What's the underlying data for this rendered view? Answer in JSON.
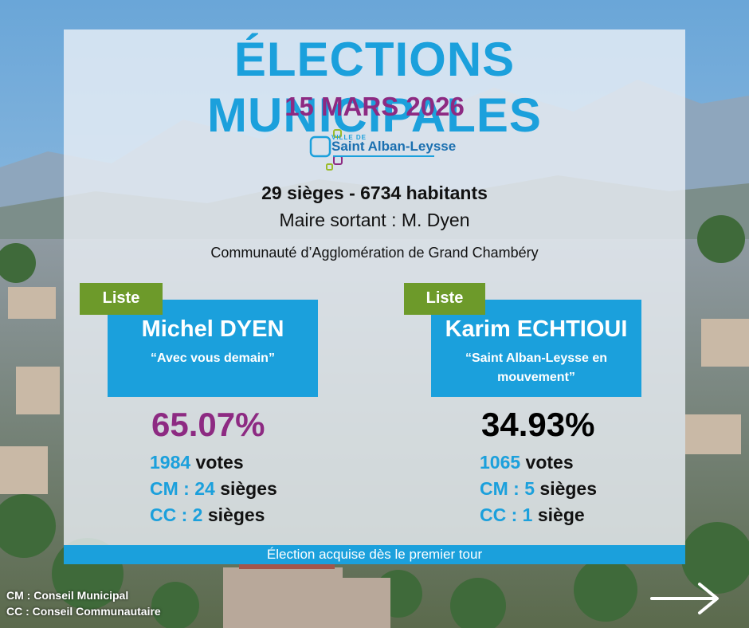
{
  "header": {
    "title": "ÉLECTIONS MUNICIPALES",
    "date": "15 MARS 2026"
  },
  "logo": {
    "prefix": "VILLE DE",
    "name": "Saint Alban-Leysse"
  },
  "info": {
    "stats": "29 sièges - 6734 habitants",
    "mayor": "Maire sortant : M. Dyen",
    "agglomeration": "Communauté d’Agglomération de Grand Chambéry"
  },
  "lists": [
    {
      "tag": "Liste",
      "name": "Michel DYEN",
      "motto": "“Avec vous demain”",
      "percent": "65.07%",
      "votes_num": "1984",
      "votes_label": " votes",
      "cm_label": "CM : ",
      "cm_num": "24",
      "cm_suffix": " sièges",
      "cc_label": "CC : ",
      "cc_num": "2",
      "cc_suffix": " sièges"
    },
    {
      "tag": "Liste",
      "name": "Karim ECHTIOUI",
      "motto": "“Saint Alban-Leysse en mouvement”",
      "percent": "34.93%",
      "votes_num": "1065",
      "votes_label": " votes",
      "cm_label": "CM : ",
      "cm_num": "5",
      "cm_suffix": " sièges",
      "cc_label": "CC : ",
      "cc_num": "1",
      "cc_suffix": " siège"
    }
  ],
  "footer": {
    "banner": "Élection acquise dès le premier tour",
    "legend_cm": "CM : Conseil Municipal",
    "legend_cc": "CC : Conseil Communautaire"
  },
  "colors": {
    "title_blue": "#1ba0dc",
    "date_purple": "#8d2a82",
    "tag_green": "#6d9a2a",
    "winner_percent": "#8d2a82",
    "loser_percent": "#000000"
  },
  "icons": {
    "next": "arrow-right-icon"
  }
}
